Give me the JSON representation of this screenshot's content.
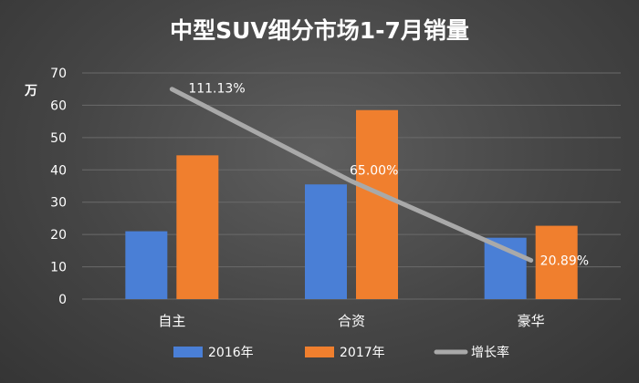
{
  "chart_data": {
    "type": "bar",
    "title": "中型SUV细分市场1-7月销量",
    "ylabel": "万",
    "ylim": [
      0,
      70
    ],
    "yticks": [
      0,
      10,
      20,
      30,
      40,
      50,
      60,
      70
    ],
    "categories": [
      "自主",
      "合资",
      "豪华"
    ],
    "series": [
      {
        "name": "2016年",
        "type": "bar",
        "color": "#4a7fd6",
        "values": [
          21,
          35.5,
          19
        ]
      },
      {
        "name": "2017年",
        "type": "bar",
        "color": "#f07f2e",
        "values": [
          44.5,
          58.5,
          22.7
        ]
      },
      {
        "name": "增长率",
        "type": "line",
        "color": "#a9a9a9",
        "values": [
          111.13,
          65.0,
          20.89
        ],
        "labels": [
          "111.13%",
          "65.00%",
          "20.89%"
        ]
      }
    ],
    "grid": true,
    "legend_position": "bottom"
  },
  "colors": {
    "background": "#454545",
    "gridline": "#6a6a6a",
    "text": "#ffffff"
  }
}
